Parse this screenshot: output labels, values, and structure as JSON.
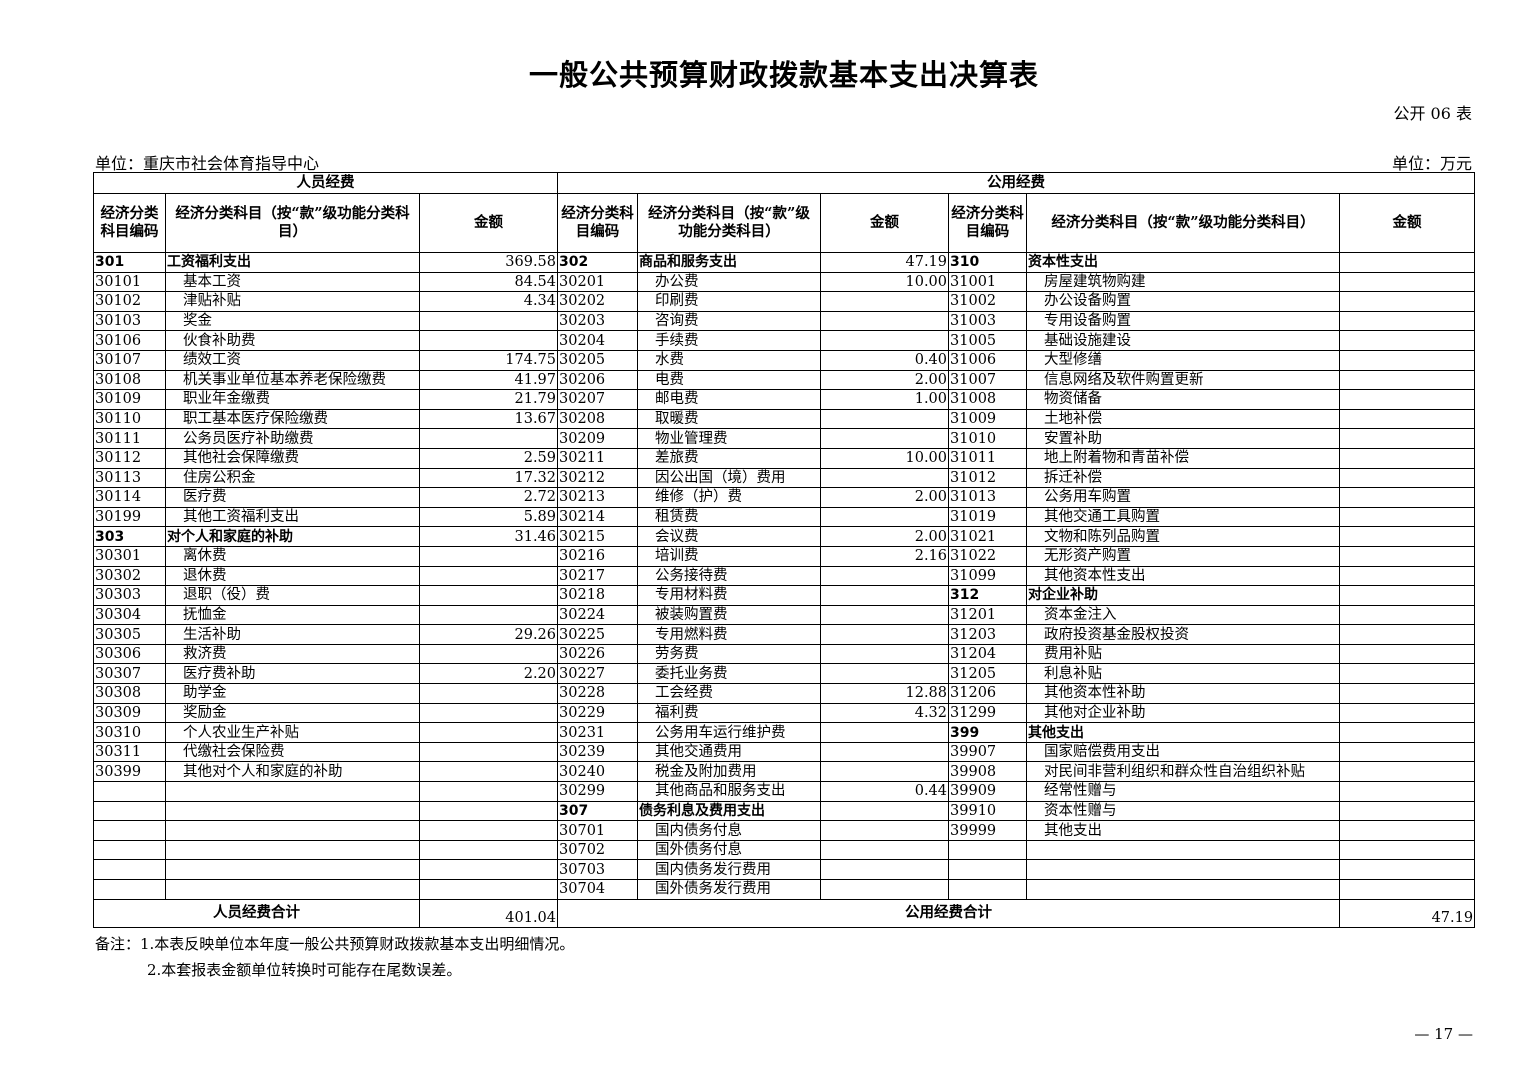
{
  "title": "一般公共预算财政拨款基本支出决算表",
  "table_no": "公开 06 表",
  "unit_org": "单位：重庆市社会体育指导中心",
  "unit_money": "单位：万元",
  "headers": {
    "personnel": "人员经费",
    "public": "公用经费",
    "code": "经济分类科目编码",
    "name_short": "经济分类科目（按“款”级功能分类科目）",
    "amount": "金额"
  },
  "rows": [
    {
      "l": [
        "301",
        "工资福利支出",
        "369.58",
        1
      ],
      "m": [
        "302",
        "商品和服务支出",
        "47.19",
        1
      ],
      "r": [
        "310",
        "资本性支出",
        "",
        1
      ]
    },
    {
      "l": [
        "30101",
        "基本工资",
        "84.54"
      ],
      "m": [
        "30201",
        "办公费",
        "10.00"
      ],
      "r": [
        "31001",
        "房屋建筑物购建",
        ""
      ]
    },
    {
      "l": [
        "30102",
        "津贴补贴",
        "4.34"
      ],
      "m": [
        "30202",
        "印刷费",
        ""
      ],
      "r": [
        "31002",
        "办公设备购置",
        ""
      ]
    },
    {
      "l": [
        "30103",
        "奖金",
        ""
      ],
      "m": [
        "30203",
        "咨询费",
        ""
      ],
      "r": [
        "31003",
        "专用设备购置",
        ""
      ]
    },
    {
      "l": [
        "30106",
        "伙食补助费",
        ""
      ],
      "m": [
        "30204",
        "手续费",
        ""
      ],
      "r": [
        "31005",
        "基础设施建设",
        ""
      ]
    },
    {
      "l": [
        "30107",
        "绩效工资",
        "174.75"
      ],
      "m": [
        "30205",
        "水费",
        "0.40"
      ],
      "r": [
        "31006",
        "大型修缮",
        ""
      ]
    },
    {
      "l": [
        "30108",
        "机关事业单位基本养老保险缴费",
        "41.97"
      ],
      "m": [
        "30206",
        "电费",
        "2.00"
      ],
      "r": [
        "31007",
        "信息网络及软件购置更新",
        ""
      ]
    },
    {
      "l": [
        "30109",
        "职业年金缴费",
        "21.79"
      ],
      "m": [
        "30207",
        "邮电费",
        "1.00"
      ],
      "r": [
        "31008",
        "物资储备",
        ""
      ]
    },
    {
      "l": [
        "30110",
        "职工基本医疗保险缴费",
        "13.67"
      ],
      "m": [
        "30208",
        "取暖费",
        ""
      ],
      "r": [
        "31009",
        "土地补偿",
        ""
      ]
    },
    {
      "l": [
        "30111",
        "公务员医疗补助缴费",
        ""
      ],
      "m": [
        "30209",
        "物业管理费",
        ""
      ],
      "r": [
        "31010",
        "安置补助",
        ""
      ]
    },
    {
      "l": [
        "30112",
        "其他社会保障缴费",
        "2.59"
      ],
      "m": [
        "30211",
        "差旅费",
        "10.00"
      ],
      "r": [
        "31011",
        "地上附着物和青苗补偿",
        ""
      ]
    },
    {
      "l": [
        "30113",
        "住房公积金",
        "17.32"
      ],
      "m": [
        "30212",
        "因公出国（境）费用",
        ""
      ],
      "r": [
        "31012",
        "拆迁补偿",
        ""
      ]
    },
    {
      "l": [
        "30114",
        "医疗费",
        "2.72"
      ],
      "m": [
        "30213",
        "维修（护）费",
        "2.00"
      ],
      "r": [
        "31013",
        "公务用车购置",
        ""
      ]
    },
    {
      "l": [
        "30199",
        "其他工资福利支出",
        "5.89"
      ],
      "m": [
        "30214",
        "租赁费",
        ""
      ],
      "r": [
        "31019",
        "其他交通工具购置",
        ""
      ]
    },
    {
      "l": [
        "303",
        "对个人和家庭的补助",
        "31.46",
        1
      ],
      "m": [
        "30215",
        "会议费",
        "2.00"
      ],
      "r": [
        "31021",
        "文物和陈列品购置",
        ""
      ]
    },
    {
      "l": [
        "30301",
        "离休费",
        ""
      ],
      "m": [
        "30216",
        "培训费",
        "2.16"
      ],
      "r": [
        "31022",
        "无形资产购置",
        ""
      ]
    },
    {
      "l": [
        "30302",
        "退休费",
        ""
      ],
      "m": [
        "30217",
        "公务接待费",
        ""
      ],
      "r": [
        "31099",
        "其他资本性支出",
        ""
      ]
    },
    {
      "l": [
        "30303",
        "退职（役）费",
        ""
      ],
      "m": [
        "30218",
        "专用材料费",
        ""
      ],
      "r": [
        "312",
        "对企业补助",
        "",
        1
      ]
    },
    {
      "l": [
        "30304",
        "抚恤金",
        ""
      ],
      "m": [
        "30224",
        "被装购置费",
        ""
      ],
      "r": [
        "31201",
        "资本金注入",
        ""
      ]
    },
    {
      "l": [
        "30305",
        "生活补助",
        "29.26"
      ],
      "m": [
        "30225",
        "专用燃料费",
        ""
      ],
      "r": [
        "31203",
        "政府投资基金股权投资",
        ""
      ]
    },
    {
      "l": [
        "30306",
        "救济费",
        ""
      ],
      "m": [
        "30226",
        "劳务费",
        ""
      ],
      "r": [
        "31204",
        "费用补贴",
        ""
      ]
    },
    {
      "l": [
        "30307",
        "医疗费补助",
        "2.20"
      ],
      "m": [
        "30227",
        "委托业务费",
        ""
      ],
      "r": [
        "31205",
        "利息补贴",
        ""
      ]
    },
    {
      "l": [
        "30308",
        "助学金",
        ""
      ],
      "m": [
        "30228",
        "工会经费",
        "12.88"
      ],
      "r": [
        "31206",
        "其他资本性补助",
        ""
      ]
    },
    {
      "l": [
        "30309",
        "奖励金",
        ""
      ],
      "m": [
        "30229",
        "福利费",
        "4.32"
      ],
      "r": [
        "31299",
        "其他对企业补助",
        ""
      ]
    },
    {
      "l": [
        "30310",
        "个人农业生产补贴",
        ""
      ],
      "m": [
        "30231",
        "公务用车运行维护费",
        ""
      ],
      "r": [
        "399",
        "其他支出",
        "",
        1
      ]
    },
    {
      "l": [
        "30311",
        "代缴社会保险费",
        ""
      ],
      "m": [
        "30239",
        "其他交通费用",
        ""
      ],
      "r": [
        "39907",
        "国家赔偿费用支出",
        ""
      ]
    },
    {
      "l": [
        "30399",
        "其他对个人和家庭的补助",
        ""
      ],
      "m": [
        "30240",
        "税金及附加费用",
        ""
      ],
      "r": [
        "39908",
        "对民间非营利组织和群众性自治组织补贴",
        ""
      ]
    },
    {
      "l": [
        "",
        "",
        ""
      ],
      "m": [
        "30299",
        "其他商品和服务支出",
        "0.44"
      ],
      "r": [
        "39909",
        "经常性赠与",
        ""
      ]
    },
    {
      "l": [
        "",
        "",
        ""
      ],
      "m": [
        "307",
        "债务利息及费用支出",
        "",
        1
      ],
      "r": [
        "39910",
        "资本性赠与",
        ""
      ]
    },
    {
      "l": [
        "",
        "",
        ""
      ],
      "m": [
        "30701",
        "国内债务付息",
        ""
      ],
      "r": [
        "39999",
        "其他支出",
        ""
      ]
    },
    {
      "l": [
        "",
        "",
        ""
      ],
      "m": [
        "30702",
        "国外债务付息",
        ""
      ],
      "r": [
        "",
        "",
        ""
      ]
    },
    {
      "l": [
        "",
        "",
        ""
      ],
      "m": [
        "30703",
        "国内债务发行费用",
        ""
      ],
      "r": [
        "",
        "",
        ""
      ]
    },
    {
      "l": [
        "",
        "",
        ""
      ],
      "m": [
        "30704",
        "国外债务发行费用",
        ""
      ],
      "r": [
        "",
        "",
        ""
      ]
    }
  ],
  "totals": {
    "personnel_label": "人员经费合计",
    "personnel_amount": "401.04",
    "public_label": "公用经费合计",
    "public_amount": "47.19"
  },
  "notes": [
    "备注：1.本表反映单位本年度一般公共预算财政拨款基本支出明细情况。",
    "2.本套报表金额单位转换时可能存在尾数误差。"
  ],
  "page_number": "— 17 —"
}
